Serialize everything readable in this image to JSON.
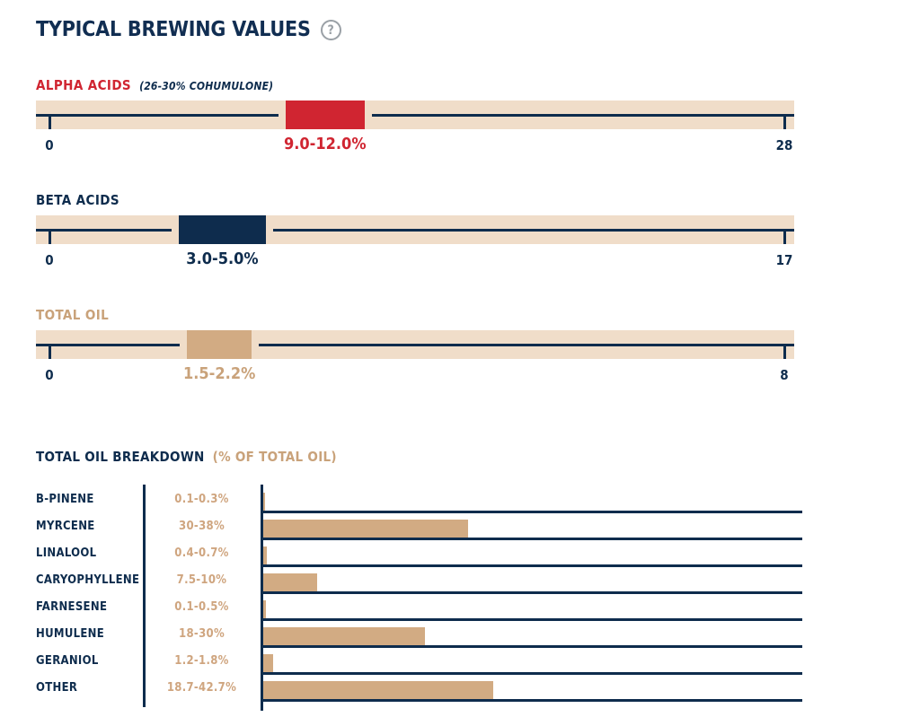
{
  "page": {
    "title": "TYPICAL BREWING VALUES",
    "help_glyph": "?"
  },
  "colors": {
    "navy": "#0e2c4d",
    "red": "#d02531",
    "tan_text": "#cfa57f",
    "tan_bar": "#d2ab83",
    "tan_track": "#f0ddc9",
    "help_gray": "#9aa0a6"
  },
  "chart_data": [
    {
      "type": "range",
      "title": "ALPHA ACIDS",
      "subtitle": "(26-30% COHUMULONE)",
      "range": [
        9.0,
        12.0
      ],
      "range_label": "9.0-12.0%",
      "axis": [
        0,
        28
      ],
      "axis_min_label": "0",
      "axis_max_label": "28",
      "bar_color": "#d02531",
      "title_color": "#d02531",
      "value_color": "#d02531"
    },
    {
      "type": "range",
      "title": "BETA ACIDS",
      "range": [
        3.0,
        5.0
      ],
      "range_label": "3.0-5.0%",
      "axis": [
        0,
        17
      ],
      "axis_min_label": "0",
      "axis_max_label": "17",
      "bar_color": "#0e2c4d",
      "title_color": "#0e2c4d",
      "value_color": "#0e2c4d"
    },
    {
      "type": "range",
      "title": "TOTAL OIL",
      "range": [
        1.5,
        2.2
      ],
      "range_label": "1.5-2.2%",
      "axis": [
        0,
        8
      ],
      "axis_min_label": "0",
      "axis_max_label": "8",
      "bar_color": "#d2ab83",
      "title_color": "#c9a27a",
      "value_color": "#c9a27a"
    },
    {
      "type": "bar",
      "orientation": "horizontal",
      "title": "TOTAL OIL BREAKDOWN",
      "subtitle": "(% OF TOTAL OIL)",
      "xlim": [
        0,
        100
      ],
      "grid": false,
      "bar_color": "#d2ab83",
      "categories": [
        "B-PINENE",
        "MYRCENE",
        "LINALOOL",
        "CARYOPHYLLENE",
        "FARNESENE",
        "HUMULENE",
        "GERANIOL",
        "OTHER"
      ],
      "value_labels": [
        "0.1-0.3%",
        "30-38%",
        "0.4-0.7%",
        "7.5-10%",
        "0.1-0.5%",
        "18-30%",
        "1.2-1.8%",
        "18.7-42.7%"
      ],
      "ranges": [
        [
          0.1,
          0.3
        ],
        [
          30,
          38
        ],
        [
          0.4,
          0.7
        ],
        [
          7.5,
          10
        ],
        [
          0.1,
          0.5
        ],
        [
          18,
          30
        ],
        [
          1.2,
          1.8
        ],
        [
          18.7,
          42.7
        ]
      ],
      "values": [
        0.3,
        38,
        0.7,
        10,
        0.5,
        30,
        1.8,
        42.7
      ]
    }
  ]
}
